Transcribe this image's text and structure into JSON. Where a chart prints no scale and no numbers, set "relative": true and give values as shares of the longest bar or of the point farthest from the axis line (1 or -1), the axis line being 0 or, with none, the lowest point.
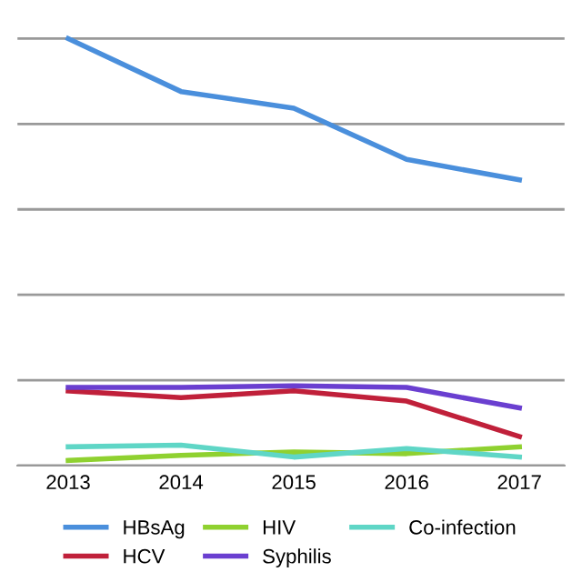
{
  "chart_data": {
    "type": "line",
    "relative": true,
    "categories": [
      "2013",
      "2014",
      "2015",
      "2016",
      "2017"
    ],
    "series": [
      {
        "name": "HBsAg",
        "color": "#4a8fdc",
        "values": [
          1,
          0.876,
          0.837,
          0.717,
          0.669
        ]
      },
      {
        "name": "HCV",
        "color": "#c0203a",
        "values": [
          0.175,
          0.159,
          0.175,
          0.151,
          0.068
        ]
      },
      {
        "name": "HIV",
        "color": "#8fd130",
        "values": [
          0.012,
          0.024,
          0.032,
          0.028,
          0.044
        ]
      },
      {
        "name": "Syphilis",
        "color": "#6a3fd0",
        "values": [
          0.183,
          0.183,
          0.187,
          0.183,
          0.135
        ]
      },
      {
        "name": "Co-infection",
        "color": "#5fd6c6",
        "values": [
          0.044,
          0.048,
          0.02,
          0.04,
          0.02
        ]
      }
    ],
    "grid": "y",
    "legend": "bottom",
    "marker": "none",
    "line_style": "solid"
  }
}
